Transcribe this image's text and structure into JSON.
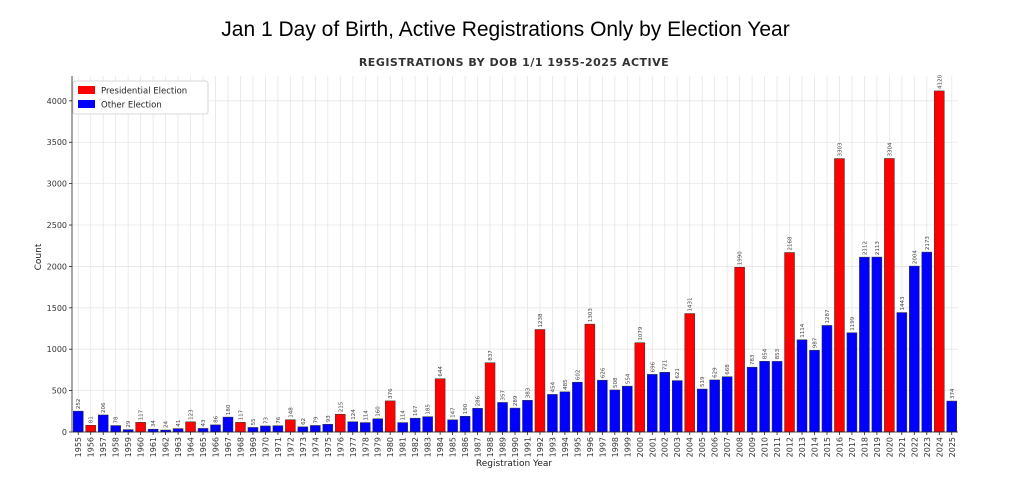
{
  "page_title": "Jan 1 Day of Birth, Active Registrations Only by Election Year",
  "chart_data": {
    "type": "bar",
    "title": "REGISTRATIONS BY DOB 1/1 1955-2025 ACTIVE",
    "xlabel": "Registration Year",
    "ylabel": "Count",
    "ylim": [
      0,
      4300
    ],
    "yticks": [
      0,
      500,
      1000,
      1500,
      2000,
      2500,
      3000,
      3500,
      4000
    ],
    "grid": true,
    "legend_position": "top-left",
    "legend": [
      {
        "name": "Presidential Election",
        "color": "#ff0000"
      },
      {
        "name": "Other Election",
        "color": "#0000ff"
      }
    ],
    "colors": {
      "presidential": "#ff0000",
      "other": "#0000ff"
    },
    "categories": [
      "1955",
      "1956",
      "1957",
      "1958",
      "1959",
      "1960",
      "1961",
      "1962",
      "1963",
      "1964",
      "1965",
      "1966",
      "1967",
      "1968",
      "1969",
      "1970",
      "1971",
      "1972",
      "1973",
      "1974",
      "1975",
      "1976",
      "1977",
      "1978",
      "1979",
      "1980",
      "1981",
      "1982",
      "1983",
      "1984",
      "1985",
      "1986",
      "1987",
      "1988",
      "1989",
      "1990",
      "1991",
      "1992",
      "1993",
      "1994",
      "1995",
      "1996",
      "1997",
      "1998",
      "1999",
      "2000",
      "2001",
      "2002",
      "2003",
      "2004",
      "2005",
      "2006",
      "2007",
      "2008",
      "2009",
      "2010",
      "2011",
      "2012",
      "2013",
      "2014",
      "2015",
      "2016",
      "2017",
      "2018",
      "2019",
      "2020",
      "2021",
      "2022",
      "2023",
      "2024",
      "2025"
    ],
    "values": [
      252,
      81,
      206,
      78,
      29,
      117,
      34,
      24,
      41,
      123,
      43,
      86,
      180,
      117,
      55,
      73,
      76,
      148,
      62,
      79,
      93,
      215,
      124,
      114,
      160,
      376,
      114,
      167,
      185,
      644,
      147,
      190,
      286,
      837,
      357,
      289,
      383,
      1238,
      454,
      485,
      602,
      1303,
      626,
      508,
      554,
      1079,
      696,
      721,
      621,
      1431,
      519,
      629,
      668,
      1990,
      783,
      854,
      853,
      2168,
      1114,
      987,
      1287,
      3303,
      1199,
      2112,
      2113,
      3304,
      1443,
      2004,
      2173,
      4120,
      374
    ],
    "value_labels": [
      "252",
      "81",
      "206",
      "78",
      "29",
      "117",
      "34",
      "24",
      "41",
      "123",
      "43",
      "86",
      "180",
      "117",
      "55",
      "73",
      "76",
      "148",
      "62",
      "79",
      "93",
      "215",
      "124",
      "114",
      "160",
      "376",
      "114",
      "167",
      "185",
      "644",
      "147",
      "190",
      "286",
      "837",
      "357",
      "289",
      "383",
      "1238",
      "454",
      "485",
      "602",
      "1303",
      "626",
      "508",
      "554",
      "1079",
      "696",
      "721",
      "621",
      "1431",
      "519",
      "629",
      "668",
      "1990",
      "783",
      "854",
      "853",
      "2168",
      "1114",
      "987",
      "1287",
      "3303",
      "1199",
      "2112",
      "2113",
      "3304",
      "1443",
      "2004",
      "2173",
      "4120",
      "374"
    ],
    "election_type": [
      "O",
      "P",
      "O",
      "O",
      "O",
      "P",
      "O",
      "O",
      "O",
      "P",
      "O",
      "O",
      "O",
      "P",
      "O",
      "O",
      "O",
      "P",
      "O",
      "O",
      "O",
      "P",
      "O",
      "O",
      "O",
      "P",
      "O",
      "O",
      "O",
      "P",
      "O",
      "O",
      "O",
      "P",
      "O",
      "O",
      "O",
      "P",
      "O",
      "O",
      "O",
      "P",
      "O",
      "O",
      "O",
      "P",
      "O",
      "O",
      "O",
      "P",
      "O",
      "O",
      "O",
      "P",
      "O",
      "O",
      "O",
      "P",
      "O",
      "O",
      "O",
      "P",
      "O",
      "O",
      "O",
      "P",
      "O",
      "O",
      "O",
      "P",
      "O"
    ]
  }
}
